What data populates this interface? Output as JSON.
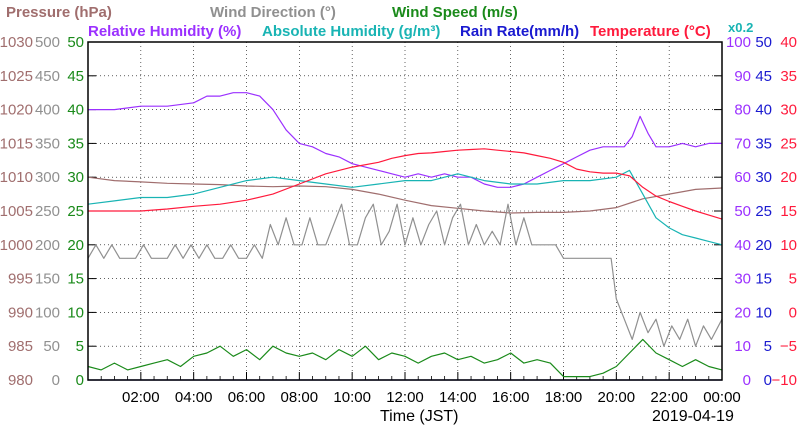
{
  "chart_data": {
    "type": "line",
    "xlabel": "Time (JST)",
    "date": "2019-04-19",
    "x_ticks": [
      "02:00",
      "04:00",
      "06:00",
      "08:00",
      "10:00",
      "12:00",
      "14:00",
      "16:00",
      "18:00",
      "20:00",
      "22:00",
      "00:00"
    ],
    "x_range_hours": [
      0,
      24
    ],
    "grid": true,
    "legend": [
      {
        "text": "Pressure (hPa)",
        "color": "#a06e6e"
      },
      {
        "text": "Wind Direction (°)",
        "color": "#909090"
      },
      {
        "text": "Wind Speed (m/s)",
        "color": "#1a8a1a"
      },
      {
        "text": "Relative Humidity (%)",
        "color": "#9b30ff"
      },
      {
        "text": "Absolute Humidity (g/m³)",
        "color": "#19b4b4"
      },
      {
        "text": "Rain Rate(mm/h)",
        "color": "#1a1ad0"
      },
      {
        "text": "Temperature (°C)",
        "color": "#ff1a3c"
      }
    ],
    "abs_humidity_factor": "x0.2",
    "axes": {
      "pressure": {
        "ticks": [
          "980",
          "985",
          "990",
          "995",
          "1000",
          "1005",
          "1010",
          "1015",
          "1020",
          "1025",
          "1030"
        ],
        "ylim": [
          980,
          1030
        ],
        "color": "#a06e6e"
      },
      "wind_direction": {
        "ticks": [
          "0",
          "50",
          "100",
          "150",
          "200",
          "250",
          "300",
          "350",
          "400",
          "450",
          "500"
        ],
        "ylim": [
          0,
          500
        ],
        "color": "#909090"
      },
      "wind_speed": {
        "ticks": [
          "0",
          "5",
          "10",
          "15",
          "20",
          "25",
          "30",
          "35",
          "40",
          "45",
          "50"
        ],
        "ylim": [
          0,
          50
        ],
        "color": "#1a8a1a"
      },
      "relative_humidity": {
        "ticks": [
          "0",
          "10",
          "20",
          "30",
          "40",
          "50",
          "60",
          "70",
          "80",
          "90",
          "100"
        ],
        "ylim": [
          0,
          100
        ],
        "color": "#9b30ff"
      },
      "rain_rate": {
        "ticks": [
          "0",
          "5",
          "10",
          "15",
          "20",
          "25",
          "30",
          "35",
          "40",
          "45",
          "50"
        ],
        "ylim": [
          0,
          50
        ],
        "color": "#1a1ad0"
      },
      "temperature": {
        "ticks": [
          "−10",
          "−5",
          "0",
          "5",
          "10",
          "15",
          "20",
          "25",
          "30",
          "35",
          "40"
        ],
        "ylim": [
          -10,
          40
        ],
        "color": "#ff1a3c"
      }
    },
    "series": [
      {
        "name": "Pressure (hPa)",
        "axis": "pressure",
        "color": "#a06e6e",
        "x": [
          0,
          1,
          2,
          3,
          4,
          5,
          6,
          7,
          8,
          9,
          10,
          11,
          12,
          13,
          14,
          15,
          16,
          17,
          18,
          19,
          20,
          21,
          22,
          23,
          24
        ],
        "y": [
          1010,
          1009.5,
          1009.3,
          1009.1,
          1009,
          1008.9,
          1008.7,
          1008.6,
          1008.7,
          1008.6,
          1008.2,
          1007.5,
          1006.6,
          1005.8,
          1005.4,
          1005,
          1004.7,
          1004.8,
          1004.8,
          1005,
          1005.5,
          1006.8,
          1007.5,
          1008.2,
          1008.4
        ]
      },
      {
        "name": "Wind Direction (°)",
        "axis": "wind_direction",
        "color": "#909090",
        "x": [
          0,
          0.3,
          0.6,
          0.9,
          1.2,
          1.5,
          1.8,
          2.1,
          2.4,
          2.7,
          3.0,
          3.3,
          3.6,
          3.9,
          4.2,
          4.5,
          4.8,
          5.1,
          5.4,
          5.7,
          6.0,
          6.3,
          6.6,
          6.9,
          7.2,
          7.5,
          7.8,
          8.1,
          8.4,
          8.7,
          9.0,
          9.3,
          9.6,
          9.9,
          10.2,
          10.5,
          10.8,
          11.1,
          11.4,
          11.7,
          12.0,
          12.3,
          12.6,
          12.9,
          13.2,
          13.5,
          13.8,
          14.1,
          14.4,
          14.7,
          15.0,
          15.3,
          15.6,
          15.9,
          16.2,
          16.5,
          16.8,
          17.1,
          17.4,
          17.7,
          18.0,
          18.5,
          19.0,
          19.5,
          19.8,
          20.0,
          20.3,
          20.6,
          20.9,
          21.2,
          21.5,
          21.8,
          22.1,
          22.4,
          22.7,
          23.0,
          23.3,
          23.6,
          24.0
        ],
        "y": [
          180,
          200,
          180,
          200,
          180,
          180,
          180,
          200,
          180,
          180,
          180,
          200,
          180,
          200,
          180,
          200,
          180,
          180,
          200,
          180,
          180,
          200,
          180,
          230,
          200,
          240,
          200,
          200,
          240,
          200,
          200,
          230,
          260,
          200,
          200,
          240,
          260,
          200,
          220,
          260,
          200,
          240,
          200,
          230,
          250,
          200,
          240,
          260,
          200,
          230,
          200,
          220,
          200,
          260,
          200,
          240,
          200,
          200,
          200,
          200,
          180,
          180,
          180,
          180,
          180,
          120,
          90,
          60,
          100,
          70,
          90,
          50,
          80,
          60,
          90,
          50,
          80,
          60,
          90
        ]
      },
      {
        "name": "Wind Speed (m/s)",
        "axis": "wind_speed",
        "color": "#1a8a1a",
        "x": [
          0,
          0.5,
          1.0,
          1.5,
          2.0,
          2.5,
          3.0,
          3.5,
          4.0,
          4.5,
          5.0,
          5.5,
          6.0,
          6.5,
          7.0,
          7.5,
          8.0,
          8.5,
          9.0,
          9.5,
          10.0,
          10.5,
          11.0,
          11.5,
          12.0,
          12.5,
          13.0,
          13.5,
          14.0,
          14.5,
          15.0,
          15.5,
          16.0,
          16.5,
          17.0,
          17.5,
          18.0,
          18.5,
          19.0,
          19.5,
          20.0,
          20.5,
          21.0,
          21.5,
          22.0,
          22.5,
          23.0,
          23.5,
          24.0
        ],
        "y": [
          2,
          1.5,
          2.5,
          1.5,
          2,
          2.5,
          3,
          2,
          3.5,
          4,
          5,
          3.5,
          4.5,
          3,
          5,
          4,
          3.5,
          4,
          3,
          4.5,
          3.5,
          5,
          3,
          4,
          3.5,
          2.5,
          3.5,
          4,
          3,
          3.5,
          2.5,
          3,
          4,
          2.5,
          3,
          2.5,
          0.5,
          0.5,
          0.5,
          1,
          2,
          4,
          6,
          4,
          3,
          2,
          3,
          2,
          1.5
        ]
      },
      {
        "name": "Relative Humidity (%)",
        "axis": "relative_humidity",
        "color": "#9b30ff",
        "x": [
          0,
          1,
          2,
          3,
          4,
          4.5,
          5,
          5.5,
          6,
          6.5,
          7,
          7.5,
          8,
          8.5,
          9,
          9.5,
          10,
          10.5,
          11,
          11.5,
          12,
          12.5,
          13,
          13.5,
          14,
          14.5,
          15,
          15.5,
          16,
          16.5,
          17,
          17.5,
          18,
          18.5,
          19,
          19.5,
          20,
          20.3,
          20.6,
          20.9,
          21.2,
          21.5,
          22,
          22.5,
          23,
          23.5,
          24
        ],
        "y": [
          80,
          80,
          81,
          81,
          82,
          84,
          84,
          85,
          85,
          84,
          80,
          74,
          70,
          69,
          67,
          66,
          64,
          63,
          62,
          61,
          60,
          61,
          60,
          61,
          60,
          60,
          58,
          57,
          57,
          58,
          60,
          62,
          64,
          66,
          68,
          69,
          69,
          69,
          72,
          78,
          73,
          69,
          69,
          70,
          69,
          70,
          70
        ]
      },
      {
        "name": "Absolute Humidity (g/m³)",
        "axis": "relative_humidity",
        "color": "#19b4b4",
        "x": [
          0,
          1,
          2,
          3,
          4,
          5,
          6,
          7,
          8,
          9,
          10,
          11,
          12,
          13,
          14,
          15,
          16,
          17,
          18,
          19,
          20,
          20.5,
          21,
          21.5,
          22,
          22.5,
          23,
          23.5,
          24
        ],
        "y": [
          52,
          53,
          54,
          54,
          55,
          57,
          59,
          60,
          59,
          58,
          57,
          58,
          59,
          59,
          61,
          59,
          58,
          58,
          59,
          59,
          60,
          62,
          55,
          48,
          45,
          43,
          42,
          41,
          40
        ]
      },
      {
        "name": "Rain Rate(mm/h)",
        "axis": "rain_rate",
        "color": "#1a1ad0",
        "x": [
          0,
          24
        ],
        "y": [
          0,
          0
        ]
      },
      {
        "name": "Temperature (°C)",
        "axis": "temperature",
        "color": "#ff1a3c",
        "x": [
          0,
          1,
          2,
          3,
          4,
          5,
          6,
          7,
          8,
          9,
          10,
          11,
          11.5,
          12,
          12.5,
          13,
          13.5,
          14,
          14.5,
          15,
          15.5,
          16,
          16.5,
          17,
          17.5,
          18,
          18.5,
          19,
          19.5,
          20,
          20.5,
          21,
          21.5,
          22,
          22.5,
          23,
          23.5,
          24
        ],
        "y": [
          15,
          15,
          15,
          15.3,
          15.7,
          16,
          16.6,
          17.5,
          19,
          20.5,
          21.5,
          22.2,
          22.8,
          23.2,
          23.5,
          23.6,
          23.8,
          24,
          24.1,
          24.2,
          24,
          23.8,
          23.6,
          23.2,
          22.8,
          22.2,
          21.2,
          20.8,
          20.6,
          20.6,
          20.2,
          18.5,
          17.2,
          16.4,
          15.7,
          15,
          14.4,
          13.8
        ]
      }
    ]
  }
}
